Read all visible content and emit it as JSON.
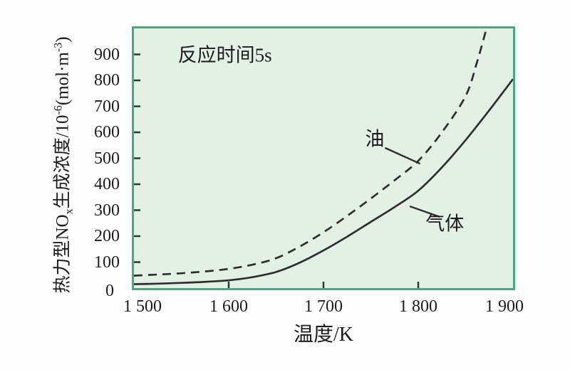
{
  "figure": {
    "annotation": "反应时间5s",
    "colors": {
      "page_bg": "#fdfdfd",
      "plot_bg": "#e3f1e5",
      "plot_border": "#43a97e",
      "curve": "#2e2e2e",
      "tick": "#223d30",
      "text": "#1c1c1c"
    }
  },
  "chart_data": {
    "type": "line",
    "title": "",
    "annotation": "反应时间5s",
    "xlabel": "温度/K",
    "ylabel": "热力型NOx生成浓度/10-6(mol·m-3)",
    "ylabel_rich": [
      {
        "t": "热力型NO"
      },
      {
        "t": "x",
        "s": "sub"
      },
      {
        "t": "生成浓度/10"
      },
      {
        "t": "-6",
        "s": "sup"
      },
      {
        "t": "(mol·m"
      },
      {
        "t": "-3",
        "s": "sup"
      },
      {
        "t": ")"
      }
    ],
    "xlim": [
      1500,
      1900
    ],
    "ylim": [
      0,
      1000
    ],
    "grid": false,
    "legend": "inline-labels",
    "xticks": {
      "marks": [
        1600,
        1700,
        1800
      ],
      "labels": [
        {
          "value": 1500,
          "label": "1 500",
          "dx": 12
        },
        {
          "value": 1600,
          "label": "1 600",
          "dx": 0
        },
        {
          "value": 1700,
          "label": "1 700",
          "dx": 0
        },
        {
          "value": 1800,
          "label": "1 800",
          "dx": 0
        },
        {
          "value": 1900,
          "label": "1 900",
          "dx": -12
        }
      ]
    },
    "yticks": {
      "marks": [
        100,
        200,
        300,
        400,
        500,
        600,
        700,
        800,
        900
      ],
      "labels": [
        {
          "value": 0,
          "label": "0",
          "dx": -8,
          "dy": 4
        },
        {
          "value": 100,
          "label": "100",
          "dx": 0,
          "dy": 0
        },
        {
          "value": 200,
          "label": "200",
          "dx": 0,
          "dy": 0
        },
        {
          "value": 300,
          "label": "300",
          "dx": 0,
          "dy": 0
        },
        {
          "value": 400,
          "label": "400",
          "dx": 0,
          "dy": 0
        },
        {
          "value": 500,
          "label": "500",
          "dx": 0,
          "dy": 0
        },
        {
          "value": 600,
          "label": "600",
          "dx": 0,
          "dy": 0
        },
        {
          "value": 700,
          "label": "700",
          "dx": 0,
          "dy": 0
        },
        {
          "value": 800,
          "label": "800",
          "dx": 0,
          "dy": 0
        },
        {
          "value": 900,
          "label": "900",
          "dx": 0,
          "dy": 0
        }
      ]
    },
    "series": [
      {
        "name": "油",
        "style": "dashed",
        "x": [
          1500,
          1525,
          1550,
          1575,
          1600,
          1625,
          1650,
          1675,
          1700,
          1725,
          1750,
          1775,
          1800,
          1825,
          1850,
          1862,
          1872,
          1880
        ],
        "y": [
          48,
          52,
          57,
          64,
          74,
          90,
          115,
          160,
          215,
          278,
          345,
          415,
          490,
          600,
          740,
          870,
          1000,
          1110
        ]
      },
      {
        "name": "气体",
        "style": "solid",
        "x": [
          1500,
          1525,
          1550,
          1575,
          1600,
          1625,
          1650,
          1675,
          1700,
          1725,
          1750,
          1775,
          1800,
          1825,
          1850,
          1875,
          1900
        ],
        "y": [
          15,
          17,
          20,
          24,
          30,
          42,
          62,
          98,
          145,
          198,
          255,
          312,
          375,
          465,
          570,
          685,
          805
        ]
      }
    ],
    "series_labels": [
      {
        "text": "油",
        "pos": [
          1754,
          573
        ],
        "line_from": [
          1765,
          540
        ],
        "line_to": [
          1802,
          479
        ]
      },
      {
        "text": "气体",
        "pos": [
          1828,
          246
        ],
        "line_from": [
          1791,
          315
        ],
        "line_to": [
          1823,
          274
        ]
      }
    ],
    "annotation_pos": [
      1596,
      896
    ]
  }
}
